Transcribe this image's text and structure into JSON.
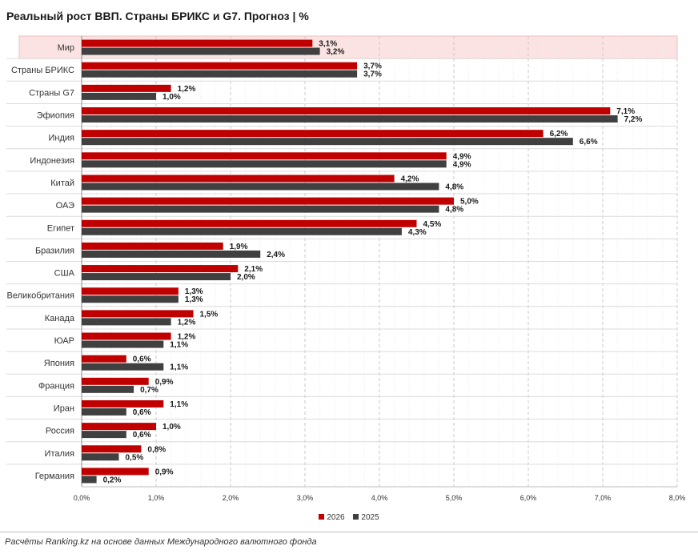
{
  "chart_data": {
    "type": "bar",
    "orientation": "horizontal",
    "title": "Реальный рост ВВП. Страны БРИКС и G7. Прогноз | %",
    "categories": [
      "Мир",
      "Страны БРИКС",
      "Страны G7",
      "Эфиопия",
      "Индия",
      "Индонезия",
      "Китай",
      "ОАЭ",
      "Египет",
      "Бразилия",
      "США",
      "Великобритания",
      "Канада",
      "ЮАР",
      "Япония",
      "Франция",
      "Иран",
      "Россия",
      "Италия",
      "Германия"
    ],
    "highlighted_category": "Мир",
    "series": [
      {
        "name": "2026",
        "color": "#c00000",
        "values": [
          3.1,
          3.7,
          1.2,
          7.1,
          6.2,
          4.9,
          4.2,
          5.0,
          4.5,
          1.9,
          2.1,
          1.3,
          1.5,
          1.2,
          0.6,
          0.9,
          1.1,
          1.0,
          0.8,
          0.9
        ]
      },
      {
        "name": "2025",
        "color": "#404040",
        "values": [
          3.2,
          3.7,
          1.0,
          7.2,
          6.6,
          4.9,
          4.8,
          4.8,
          4.3,
          2.4,
          2.0,
          1.3,
          1.2,
          1.1,
          1.1,
          0.7,
          0.6,
          0.6,
          0.5,
          0.2
        ]
      }
    ],
    "value_labels": {
      "2026": [
        "3,1%",
        "3,7%",
        "1,2%",
        "7,1%",
        "6,2%",
        "4,9%",
        "4,2%",
        "5,0%",
        "4,5%",
        "1,9%",
        "2,1%",
        "1,3%",
        "1,5%",
        "1,2%",
        "0,6%",
        "0,9%",
        "1,1%",
        "1,0%",
        "0,8%",
        "0,9%"
      ],
      "2025": [
        "3,2%",
        "3,7%",
        "1,0%",
        "7,2%",
        "6,6%",
        "4,9%",
        "4,8%",
        "4,8%",
        "4,3%",
        "2,4%",
        "2,0%",
        "1,3%",
        "1,2%",
        "1,1%",
        "1,1%",
        "0,7%",
        "0,6%",
        "0,6%",
        "0,5%",
        "0,2%"
      ]
    },
    "xlim": [
      0,
      8
    ],
    "xticks": [
      0,
      1,
      2,
      3,
      4,
      5,
      6,
      7,
      8
    ],
    "xtick_labels": [
      "0,0%",
      "1,0%",
      "2,0%",
      "3,0%",
      "4,0%",
      "5,0%",
      "6,0%",
      "7,0%",
      "8,0%"
    ],
    "grid": true,
    "legend": {
      "position": "bottom-center",
      "entries": [
        "2026",
        "2025"
      ]
    },
    "highlight_color": "#fbe3e3"
  },
  "source": "Расчёты Ranking.kz на основе данных Международного валютного фонда"
}
